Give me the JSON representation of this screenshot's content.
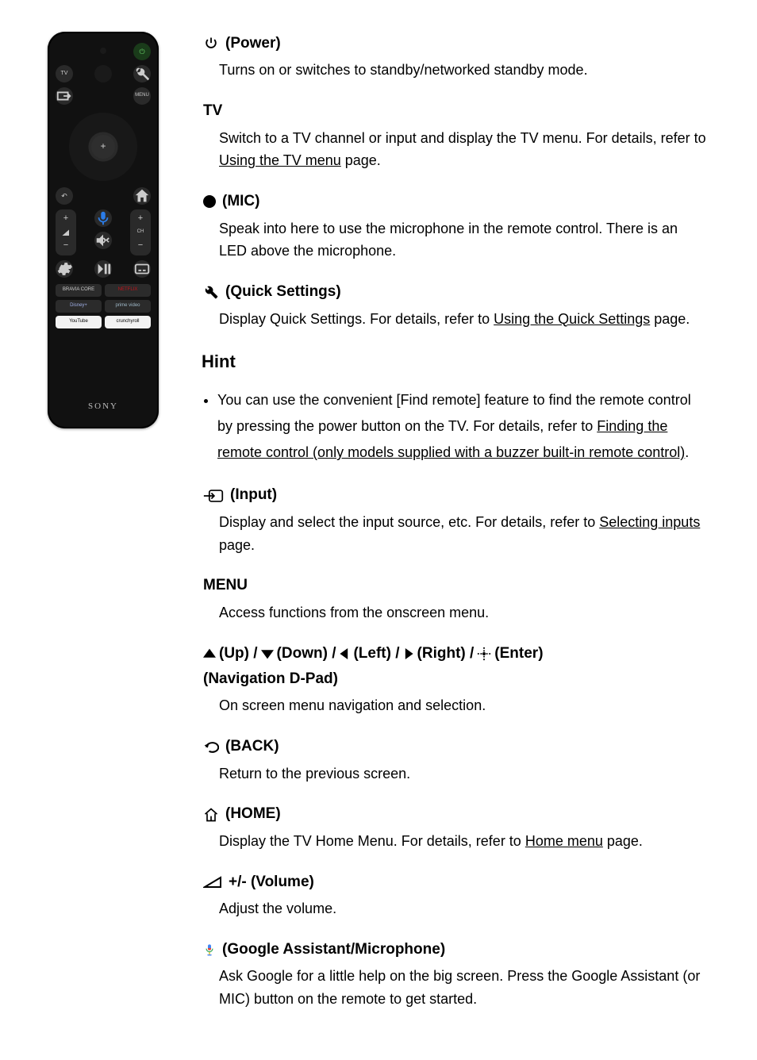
{
  "remote": {
    "logo": "SONY",
    "top_row": {
      "tv_label": "TV",
      "wrench_icon": "wrench-icon"
    },
    "second_row": {
      "input_icon": "input-icon",
      "menu_label": "MENU"
    },
    "dpad_center": "+",
    "rockers": {
      "vol": {
        "plus": "+",
        "minus": "−",
        "icon": "volume-icon"
      },
      "ch": {
        "plus": "+",
        "minus": "−",
        "label": "CH"
      }
    },
    "mid_icons": [
      "mic-icon",
      "mute-icon"
    ],
    "three_small": [
      "settings-icon",
      "play-pause-icon",
      "cc-icon"
    ],
    "back_home": [
      "back-icon",
      "home-icon"
    ],
    "apps": [
      {
        "label": "BRAVIA CORE",
        "bg": "#2b2b2b",
        "fg": "#cccccc"
      },
      {
        "label": "NETFLIX",
        "bg": "#2b2b2b",
        "fg": "#c01119"
      },
      {
        "label": "Disney+",
        "bg": "#2b2b2b",
        "fg": "#9faee6"
      },
      {
        "label": "prime video",
        "bg": "#2b2b2b",
        "fg": "#9fb8c7"
      },
      {
        "label": "YouTube",
        "bg": "#f2f2f2",
        "fg": "#000000"
      },
      {
        "label": "crunchyroll",
        "bg": "#f2f2f2",
        "fg": "#000000"
      }
    ]
  },
  "content": {
    "power": {
      "label": " (Power)",
      "body": "Turns on or switches to standby/networked standby mode."
    },
    "tv": {
      "label": "TV",
      "body_pre": "Switch to a TV channel or input and display the TV menu. For details, refer to ",
      "link": "Using the TV menu",
      "body_post": " page."
    },
    "mic": {
      "label": " (MIC)",
      "body": "Speak into here to use the microphone in the remote control. There is an LED above the microphone."
    },
    "quick": {
      "label": "(Quick Settings)",
      "body_pre": "Display Quick Settings. For details, refer to ",
      "link": "Using the Quick Settings",
      "body_post": " page."
    },
    "hint": {
      "title": "Hint",
      "item_pre": "You can use the convenient [Find remote] feature to find the remote control by pressing the power button on the TV. For details, refer to ",
      "item_link": "Finding the remote control (only models supplied with a buzzer built-in remote control)",
      "item_post": "."
    },
    "input": {
      "label": "(Input)",
      "body_pre": "Display and select the input source, etc. For details, refer to ",
      "link": "Selecting inputs",
      "body_post": " page."
    },
    "menu": {
      "label": "MENU",
      "body": "Access functions from the onscreen menu."
    },
    "dpad": {
      "up": " (Up) / ",
      "down": " (Down) / ",
      "left": " (Left) / ",
      "right": " (Right) / ",
      "enter": " (Enter)",
      "sub": "(Navigation D-Pad)",
      "body": "On screen menu navigation and selection."
    },
    "back": {
      "label": "(BACK)",
      "body": "Return to the previous screen."
    },
    "home": {
      "label": "(HOME)",
      "body_pre": "Display the TV Home Menu. For details, refer to ",
      "link": "Home menu",
      "body_post": " page."
    },
    "volume": {
      "label": "+/- (Volume)",
      "body": "Adjust the volume."
    },
    "assistant": {
      "label": " (Google Assistant/Microphone)",
      "body": "Ask Google for a little help on the big screen. Press the Google Assistant (or MIC) button on the remote to get started."
    }
  },
  "styles": {
    "text_color": "#000000",
    "link_color": "#000000",
    "body_font_size": 18,
    "heading_font_size": 19,
    "hint_title_size": 22,
    "accent_google_mic": {
      "top": "#4285F4",
      "mid": "#EA4335",
      "bottom": "#34A853",
      "stand": "#FBBC05"
    }
  }
}
